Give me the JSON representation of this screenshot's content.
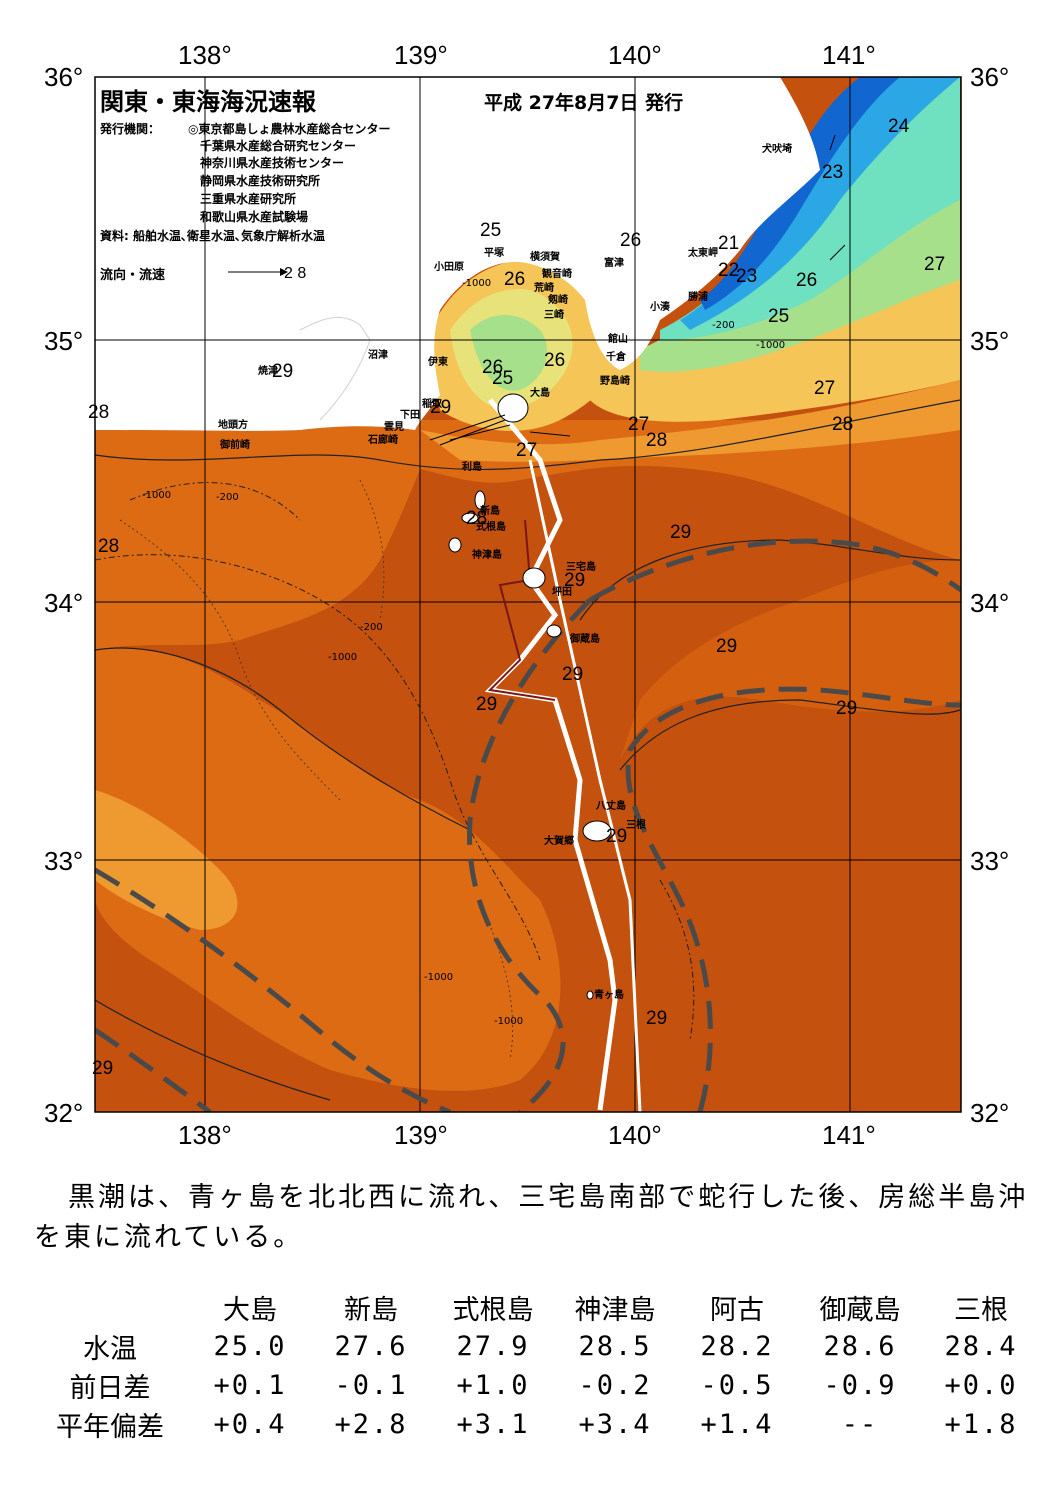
{
  "header": {
    "title": "関東・東海海況速報",
    "date": "平成 27年8月7日 発行",
    "issuer_label": "発行機関：",
    "issuers": [
      "◎東京都島しょ農林水産総合センター",
      "千葉県水産総合研究センター",
      "神奈川県水産技術センター",
      "静岡県水産技術研究所",
      "三重県水産研究所",
      "和歌山県水産試験場"
    ],
    "source": "資料: 船舶水温､衛星水温､気象庁解析水温",
    "flow_legend_label": "流向・流速",
    "flow_legend_value": "2 8"
  },
  "axes": {
    "lon_labels": [
      "138°",
      "139°",
      "140°",
      "141°"
    ],
    "lat_labels": [
      "36°",
      "35°",
      "34°",
      "33°",
      "32°"
    ]
  },
  "places": [
    "犬吠埼",
    "太東岬",
    "勝浦",
    "小湊",
    "館山",
    "千倉",
    "野島崎",
    "富津",
    "横須賀",
    "観音崎",
    "剱崎",
    "三崎",
    "荒崎",
    "平塚",
    "小田原",
    "沼津",
    "伊東",
    "焼津",
    "稲取",
    "下田",
    "石廊崎",
    "雲見",
    "地頭方",
    "御前崎",
    "大島",
    "利島",
    "新島",
    "式根島",
    "神津島",
    "三宅島",
    "坪田",
    "御蔵島",
    "八丈島",
    "大賀郷",
    "三根",
    "青ヶ島"
  ],
  "temp_labels": [
    "24",
    "23",
    "26",
    "21",
    "22",
    "23",
    "26",
    "25",
    "27",
    "25",
    "26",
    "25",
    "26",
    "26",
    "27",
    "27",
    "28",
    "28",
    "27",
    "28",
    "28",
    "28",
    "29",
    "29",
    "29",
    "29",
    "29",
    "29",
    "29",
    "29",
    "29",
    "29",
    "29"
  ],
  "depth_labels": [
    "-1000",
    "-200"
  ],
  "colors": {
    "warm_29": "#c4510e",
    "warm_28": "#dd6b13",
    "warm_27": "#ee9a30",
    "temp_26": "#f5c557",
    "temp_25": "#e8e27a",
    "temp_24": "#a7e08a",
    "temp_23": "#6fe0c0",
    "temp_22": "#2ca7e6",
    "temp_21": "#1166d0",
    "kuroshio_axis": "#4a4a4a"
  },
  "summary": "黒潮は、青ヶ島を北北西に流れ、三宅島南部で蛇行した後、房総半島沖を東に流れている。",
  "table": {
    "headers": [
      "大島",
      "新島",
      "式根島",
      "神津島",
      "阿古",
      "御蔵島",
      "三根"
    ],
    "rows": [
      {
        "label": "水温",
        "values": [
          "25.0",
          "27.6",
          "27.9",
          "28.5",
          "28.2",
          "28.6",
          "28.4"
        ]
      },
      {
        "label": "前日差",
        "values": [
          "+0.1",
          "-0.1",
          "+1.0",
          "-0.2",
          "-0.5",
          "-0.9",
          "+0.0"
        ]
      },
      {
        "label": "平年偏差",
        "values": [
          "+0.4",
          "+2.8",
          "+3.1",
          "+3.4",
          "+1.4",
          "--",
          "+1.8"
        ]
      }
    ]
  }
}
